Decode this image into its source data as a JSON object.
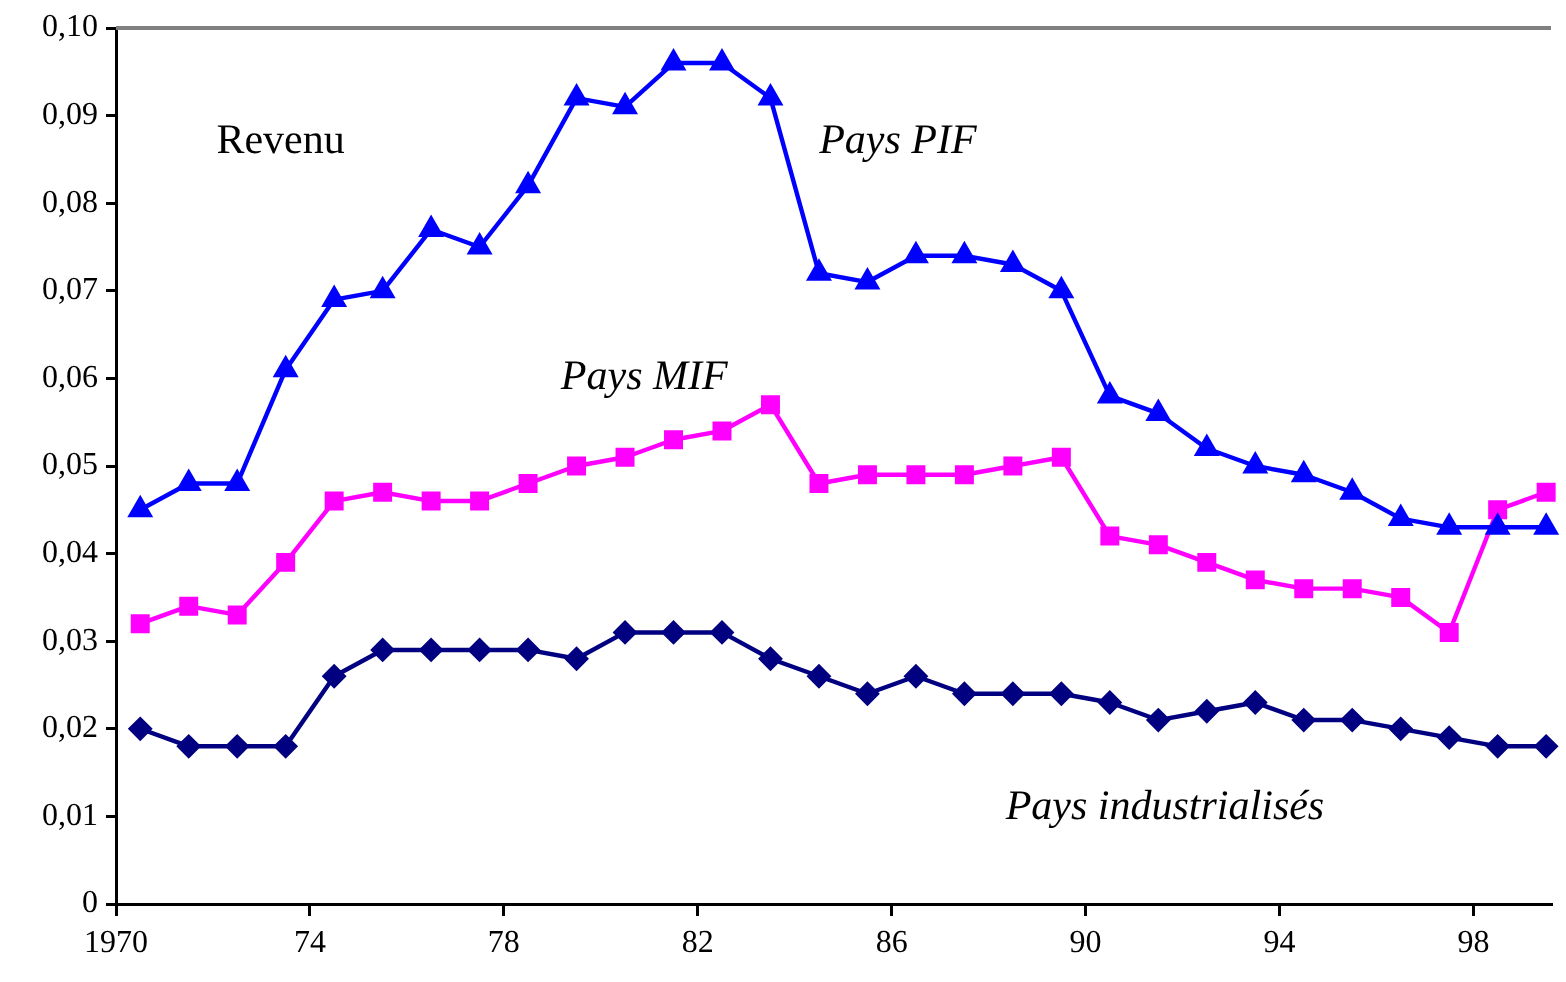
{
  "chart_data": {
    "type": "line",
    "annotations": [
      "Revenu"
    ],
    "x": [
      1970.5,
      1971.5,
      1972.5,
      1973.5,
      1974.5,
      1975.5,
      1976.5,
      1977.5,
      1978.5,
      1979.5,
      1980.5,
      1981.5,
      1982.5,
      1983.5,
      1984.5,
      1985.5,
      1986.5,
      1987.5,
      1988.5,
      1989.5,
      1990.5,
      1991.5,
      1992.5,
      1993.5,
      1994.5,
      1995.5,
      1996.5,
      1997.5,
      1998.5,
      1999.5
    ],
    "series": [
      {
        "name": "Pays PIF",
        "color": "#0000ff",
        "marker": "triangle",
        "values": [
          0.045,
          0.048,
          0.048,
          0.061,
          0.069,
          0.07,
          0.077,
          0.075,
          0.082,
          0.092,
          0.091,
          0.096,
          0.096,
          0.092,
          0.072,
          0.071,
          0.074,
          0.074,
          0.073,
          0.07,
          0.058,
          0.056,
          0.052,
          0.05,
          0.049,
          0.047,
          0.044,
          0.043,
          0.043,
          0.043
        ]
      },
      {
        "name": "Pays MIF",
        "color": "#ff00ff",
        "marker": "square",
        "values": [
          0.032,
          0.034,
          0.033,
          0.039,
          0.046,
          0.047,
          0.046,
          0.046,
          0.048,
          0.05,
          0.051,
          0.053,
          0.054,
          0.057,
          0.048,
          0.049,
          0.049,
          0.049,
          0.05,
          0.051,
          0.042,
          0.041,
          0.039,
          0.037,
          0.036,
          0.036,
          0.035,
          0.031,
          0.045,
          0.047
        ]
      },
      {
        "name": "Pays industrialisés",
        "color": "#000080",
        "marker": "diamond",
        "values": [
          0.02,
          0.018,
          0.018,
          0.018,
          0.026,
          0.029,
          0.029,
          0.029,
          0.029,
          0.028,
          0.031,
          0.031,
          0.031,
          0.028,
          0.026,
          0.024,
          0.026,
          0.024,
          0.024,
          0.024,
          0.023,
          0.021,
          0.022,
          0.023,
          0.021,
          0.021,
          0.02,
          0.019,
          0.018,
          0.018
        ]
      }
    ],
    "xlim": [
      1970,
      1999.6
    ],
    "xticks": [
      {
        "value": 1970,
        "label": "1970"
      },
      {
        "value": 1974,
        "label": "74"
      },
      {
        "value": 1978,
        "label": "78"
      },
      {
        "value": 1982,
        "label": "82"
      },
      {
        "value": 1986,
        "label": "86"
      },
      {
        "value": 1990,
        "label": "90"
      },
      {
        "value": 1994,
        "label": "94"
      },
      {
        "value": 1998,
        "label": "98"
      }
    ],
    "ylim": [
      0,
      0.1
    ],
    "yticks": [
      {
        "value": 0,
        "label": "0"
      },
      {
        "value": 0.01,
        "label": "0,01"
      },
      {
        "value": 0.02,
        "label": "0,02"
      },
      {
        "value": 0.03,
        "label": "0,03"
      },
      {
        "value": 0.04,
        "label": "0,04"
      },
      {
        "value": 0.05,
        "label": "0,05"
      },
      {
        "value": 0.06,
        "label": "0,06"
      },
      {
        "value": 0.07,
        "label": "0,07"
      },
      {
        "value": 0.08,
        "label": "0,08"
      },
      {
        "value": 0.09,
        "label": "0,09"
      },
      {
        "value": 0.1,
        "label": "0,10"
      }
    ],
    "grid": false,
    "legend": false,
    "line_style": "solid"
  }
}
